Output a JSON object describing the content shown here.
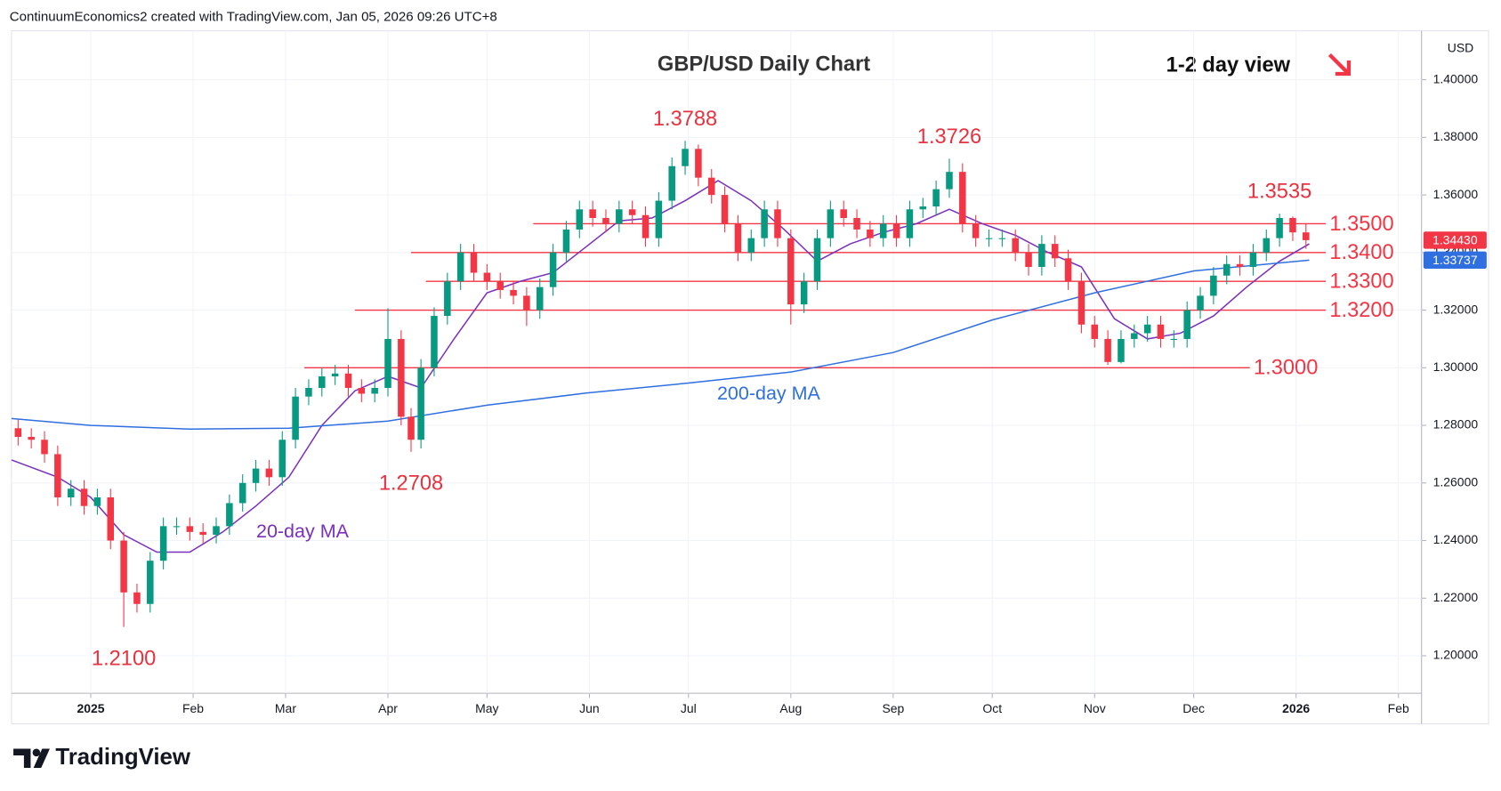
{
  "chart_data": {
    "type": "candlestick",
    "header": "ContinuumEconomics2 created with TradingView.com, Jan 05, 2026 09:26 UTC+8",
    "title": "GBP/USD Daily Chart",
    "subtitle": "1-2 day view",
    "currency": "USD",
    "brand": "TradingView",
    "up_color": "#089981",
    "down_color": "#f23645",
    "x": [
      -22,
      -18,
      -14,
      -10,
      -6,
      -2,
      2,
      6,
      10,
      14,
      18,
      22,
      26,
      30,
      34,
      38,
      42,
      46,
      50,
      54,
      58,
      62,
      66,
      70,
      74,
      78,
      82,
      86,
      90,
      94,
      97,
      100,
      104,
      108,
      112,
      116,
      120,
      124,
      128,
      132,
      136,
      140,
      144,
      148,
      152,
      156,
      160,
      164,
      168,
      172,
      176,
      180,
      184,
      188,
      192,
      196,
      200,
      204,
      208,
      212,
      216,
      220,
      224,
      228,
      232,
      236,
      240,
      244,
      248,
      252,
      256,
      260,
      264,
      268,
      272,
      276,
      280,
      284,
      288,
      292,
      296,
      300,
      304,
      308,
      312,
      316,
      320,
      324,
      328,
      332,
      336,
      340,
      344,
      348,
      352,
      356,
      360,
      364,
      368
    ],
    "open": [
      1.279,
      1.276,
      1.275,
      1.27,
      1.255,
      1.258,
      1.252,
      1.255,
      1.24,
      1.222,
      1.218,
      1.233,
      1.245,
      1.245,
      1.243,
      1.242,
      1.245,
      1.253,
      1.26,
      1.265,
      1.262,
      1.275,
      1.29,
      1.293,
      1.297,
      1.298,
      1.293,
      1.291,
      1.293,
      1.31,
      1.283,
      1.275,
      1.3,
      1.318,
      1.33,
      1.34,
      1.333,
      1.33,
      1.327,
      1.325,
      1.32,
      1.328,
      1.34,
      1.348,
      1.355,
      1.352,
      1.35,
      1.355,
      1.353,
      1.345,
      1.358,
      1.37,
      1.376,
      1.366,
      1.36,
      1.35,
      1.34,
      1.345,
      1.355,
      1.345,
      1.322,
      1.33,
      1.345,
      1.355,
      1.352,
      1.348,
      1.345,
      1.35,
      1.345,
      1.355,
      1.356,
      1.362,
      1.368,
      1.35,
      1.345,
      1.345,
      1.345,
      1.34,
      1.335,
      1.343,
      1.338,
      1.33,
      1.315,
      1.31,
      1.302,
      1.31,
      1.312,
      1.315,
      1.31,
      1.31,
      1.32,
      1.325,
      1.332,
      1.336,
      1.335,
      1.34,
      1.345,
      1.352,
      1.347
    ],
    "high": [
      1.282,
      1.279,
      1.278,
      1.273,
      1.261,
      1.261,
      1.258,
      1.258,
      1.243,
      1.225,
      1.236,
      1.248,
      1.248,
      1.248,
      1.246,
      1.248,
      1.256,
      1.263,
      1.268,
      1.268,
      1.278,
      1.293,
      1.296,
      1.3,
      1.301,
      1.301,
      1.296,
      1.296,
      1.3207,
      1.313,
      1.286,
      1.303,
      1.321,
      1.333,
      1.343,
      1.343,
      1.336,
      1.333,
      1.33,
      1.328,
      1.331,
      1.343,
      1.351,
      1.358,
      1.358,
      1.355,
      1.358,
      1.358,
      1.356,
      1.361,
      1.373,
      1.3788,
      1.3775,
      1.369,
      1.363,
      1.353,
      1.348,
      1.358,
      1.358,
      1.348,
      1.333,
      1.348,
      1.358,
      1.358,
      1.355,
      1.351,
      1.353,
      1.353,
      1.358,
      1.359,
      1.365,
      1.3726,
      1.371,
      1.353,
      1.348,
      1.348,
      1.348,
      1.343,
      1.346,
      1.346,
      1.341,
      1.333,
      1.318,
      1.313,
      1.313,
      1.315,
      1.318,
      1.318,
      1.313,
      1.323,
      1.328,
      1.335,
      1.339,
      1.339,
      1.343,
      1.348,
      1.3535,
      1.3525,
      1.35
    ],
    "low": [
      1.273,
      1.272,
      1.267,
      1.252,
      1.252,
      1.249,
      1.249,
      1.237,
      1.21,
      1.215,
      1.215,
      1.23,
      1.242,
      1.24,
      1.239,
      1.239,
      1.242,
      1.25,
      1.257,
      1.259,
      1.259,
      1.272,
      1.287,
      1.29,
      1.294,
      1.29,
      1.288,
      1.288,
      1.29,
      1.28,
      1.2708,
      1.272,
      1.297,
      1.315,
      1.327,
      1.33,
      1.327,
      1.324,
      1.322,
      1.3145,
      1.317,
      1.325,
      1.337,
      1.345,
      1.349,
      1.347,
      1.347,
      1.35,
      1.342,
      1.342,
      1.355,
      1.367,
      1.363,
      1.357,
      1.347,
      1.337,
      1.337,
      1.342,
      1.342,
      1.315,
      1.319,
      1.327,
      1.342,
      1.349,
      1.345,
      1.342,
      1.342,
      1.342,
      1.342,
      1.352,
      1.353,
      1.359,
      1.347,
      1.342,
      1.342,
      1.342,
      1.337,
      1.332,
      1.332,
      1.335,
      1.327,
      1.312,
      1.307,
      1.301,
      1.3015,
      1.307,
      1.309,
      1.307,
      1.307,
      1.307,
      1.317,
      1.322,
      1.329,
      1.332,
      1.332,
      1.337,
      1.342,
      1.344,
      1.3413
    ],
    "close": [
      1.276,
      1.275,
      1.27,
      1.255,
      1.258,
      1.252,
      1.255,
      1.24,
      1.222,
      1.218,
      1.233,
      1.245,
      1.245,
      1.243,
      1.242,
      1.245,
      1.253,
      1.26,
      1.265,
      1.262,
      1.275,
      1.29,
      1.293,
      1.297,
      1.298,
      1.293,
      1.291,
      1.293,
      1.31,
      1.283,
      1.275,
      1.3,
      1.318,
      1.33,
      1.34,
      1.333,
      1.33,
      1.327,
      1.325,
      1.32,
      1.328,
      1.34,
      1.348,
      1.355,
      1.352,
      1.35,
      1.355,
      1.353,
      1.345,
      1.358,
      1.37,
      1.376,
      1.366,
      1.36,
      1.35,
      1.34,
      1.345,
      1.355,
      1.345,
      1.322,
      1.33,
      1.345,
      1.355,
      1.352,
      1.348,
      1.345,
      1.35,
      1.345,
      1.355,
      1.356,
      1.362,
      1.368,
      1.35,
      1.345,
      1.345,
      1.345,
      1.34,
      1.335,
      1.343,
      1.338,
      1.33,
      1.315,
      1.31,
      1.302,
      1.31,
      1.312,
      1.315,
      1.31,
      1.31,
      1.32,
      1.325,
      1.332,
      1.336,
      1.335,
      1.34,
      1.345,
      1.352,
      1.347,
      1.3443
    ],
    "xlim": [
      -24,
      403
    ],
    "xticks": [
      {
        "value": 0,
        "label": "2025"
      },
      {
        "value": 31,
        "label": "Feb"
      },
      {
        "value": 59,
        "label": "Mar"
      },
      {
        "value": 90,
        "label": "Apr"
      },
      {
        "value": 120,
        "label": "May"
      },
      {
        "value": 151,
        "label": "Jun"
      },
      {
        "value": 181,
        "label": "Jul"
      },
      {
        "value": 212,
        "label": "Aug"
      },
      {
        "value": 243,
        "label": "Sep"
      },
      {
        "value": 273,
        "label": "Oct"
      },
      {
        "value": 304,
        "label": "Nov"
      },
      {
        "value": 334,
        "label": "Dec"
      },
      {
        "value": 365,
        "label": "2026"
      },
      {
        "value": 396,
        "label": "Feb"
      }
    ],
    "ylim": [
      1.187,
      1.417
    ],
    "yticks": [
      {
        "value": 1.2,
        "label": "1.20000"
      },
      {
        "value": 1.22,
        "label": "1.22000"
      },
      {
        "value": 1.24,
        "label": "1.24000"
      },
      {
        "value": 1.26,
        "label": "1.26000"
      },
      {
        "value": 1.28,
        "label": "1.28000"
      },
      {
        "value": 1.3,
        "label": "1.30000"
      },
      {
        "value": 1.32,
        "label": "1.32000"
      },
      {
        "value": 1.34,
        "label": "1.34000"
      },
      {
        "value": 1.36,
        "label": "1.36000"
      },
      {
        "value": 1.38,
        "label": "1.38000"
      },
      {
        "value": 1.4,
        "label": "1.40000"
      }
    ],
    "grid": true,
    "overlays": [
      {
        "name": "20-day MA",
        "color": "#7b2fbe",
        "x": [
          -24,
          -10,
          0,
          10,
          20,
          30,
          40,
          50,
          60,
          70,
          80,
          90,
          100,
          110,
          120,
          130,
          140,
          150,
          160,
          170,
          180,
          190,
          200,
          210,
          220,
          230,
          240,
          250,
          260,
          270,
          280,
          290,
          300,
          310,
          320,
          330,
          340,
          350,
          360,
          369
        ],
        "values": [
          1.268,
          1.262,
          1.255,
          1.242,
          1.236,
          1.236,
          1.243,
          1.252,
          1.262,
          1.28,
          1.292,
          1.297,
          1.293,
          1.31,
          1.326,
          1.33,
          1.333,
          1.342,
          1.351,
          1.352,
          1.358,
          1.365,
          1.358,
          1.348,
          1.337,
          1.343,
          1.347,
          1.35,
          1.355,
          1.35,
          1.346,
          1.34,
          1.335,
          1.317,
          1.31,
          1.312,
          1.318,
          1.328,
          1.337,
          1.343
        ]
      },
      {
        "name": "200-day MA",
        "color": "#2f6fe0",
        "x": [
          -24,
          0,
          30,
          60,
          90,
          120,
          150,
          181,
          212,
          243,
          273,
          304,
          334,
          369
        ],
        "values": [
          1.2824,
          1.28,
          1.2787,
          1.279,
          1.2815,
          1.287,
          1.2912,
          1.2947,
          1.2985,
          1.3053,
          1.3166,
          1.326,
          1.3336,
          1.33737
        ]
      }
    ],
    "level_color": "#f23645",
    "levels": [
      {
        "value": 1.35,
        "label": "1.3500",
        "x_range": [
          134,
          374
        ]
      },
      {
        "value": 1.34,
        "label": "1.3400",
        "x_range": [
          97,
          374
        ]
      },
      {
        "value": 1.33,
        "label": "1.3300",
        "x_range": [
          101.5,
          374
        ]
      },
      {
        "value": 1.32,
        "label": "1.3200",
        "x_range": [
          80,
          374
        ]
      },
      {
        "value": 1.3,
        "label": "1.3000",
        "x_range": [
          64.7,
          351
        ]
      }
    ],
    "annotations": [
      {
        "value": 1.3788,
        "label": "1.3788"
      },
      {
        "value": 1.3726,
        "label": "1.3726"
      },
      {
        "value": 1.3535,
        "label": "1.3535"
      },
      {
        "value": 1.2708,
        "label": "1.2708"
      },
      {
        "value": 1.21,
        "label": "1.2100"
      }
    ],
    "price_tags": [
      {
        "value": 1.3443,
        "label": "1.34430",
        "color": "#f23645"
      },
      {
        "value": 1.33737,
        "label": "1.33737",
        "color": "#2f6fe0"
      }
    ]
  }
}
